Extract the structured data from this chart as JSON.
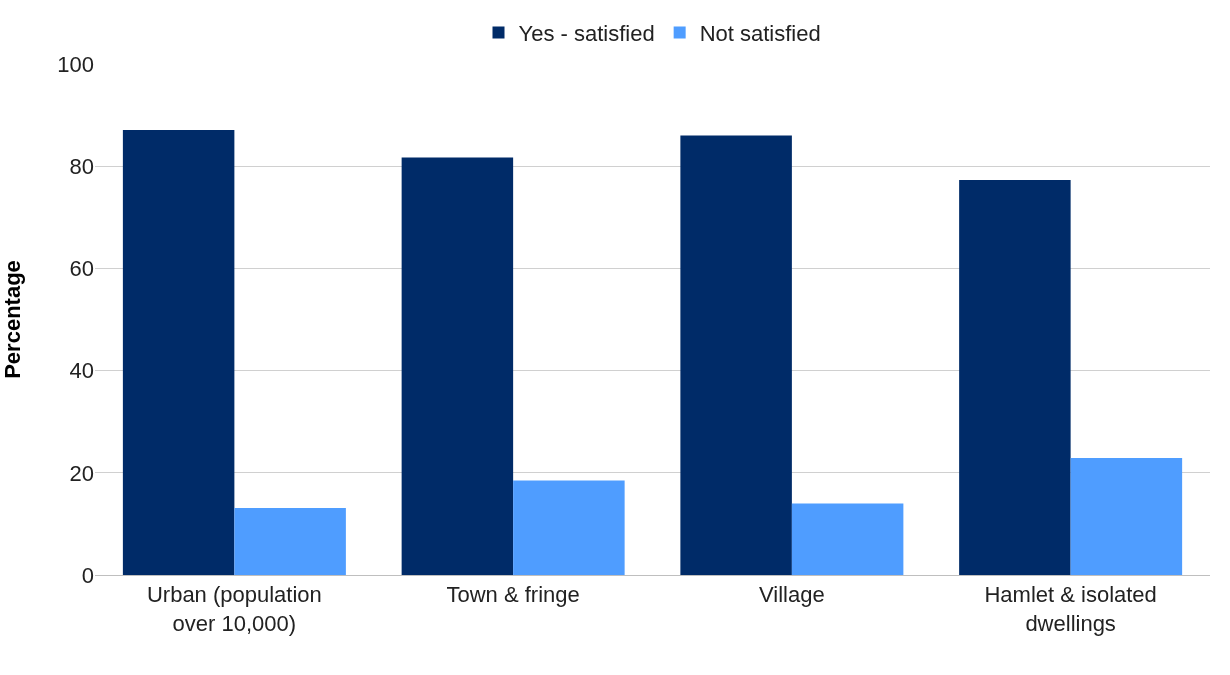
{
  "chart_data": {
    "type": "bar",
    "ylabel": "Percentage",
    "categories": [
      "Urban (population over 10,000)",
      "Town & fringe",
      "Village",
      "Hamlet & isolated dwellings"
    ],
    "series": [
      {
        "name": "Yes - satisfied",
        "color": "#002b68",
        "values": [
          87.1,
          81.7,
          86.0,
          77.3
        ]
      },
      {
        "name": "Not satisfied",
        "color": "#4f9dff",
        "values": [
          13.1,
          18.5,
          14.0,
          22.9
        ]
      }
    ],
    "ylim": [
      0,
      100
    ],
    "yticks": [
      0,
      20,
      40,
      60,
      80,
      100
    ],
    "grid": "y",
    "legend": "top"
  }
}
